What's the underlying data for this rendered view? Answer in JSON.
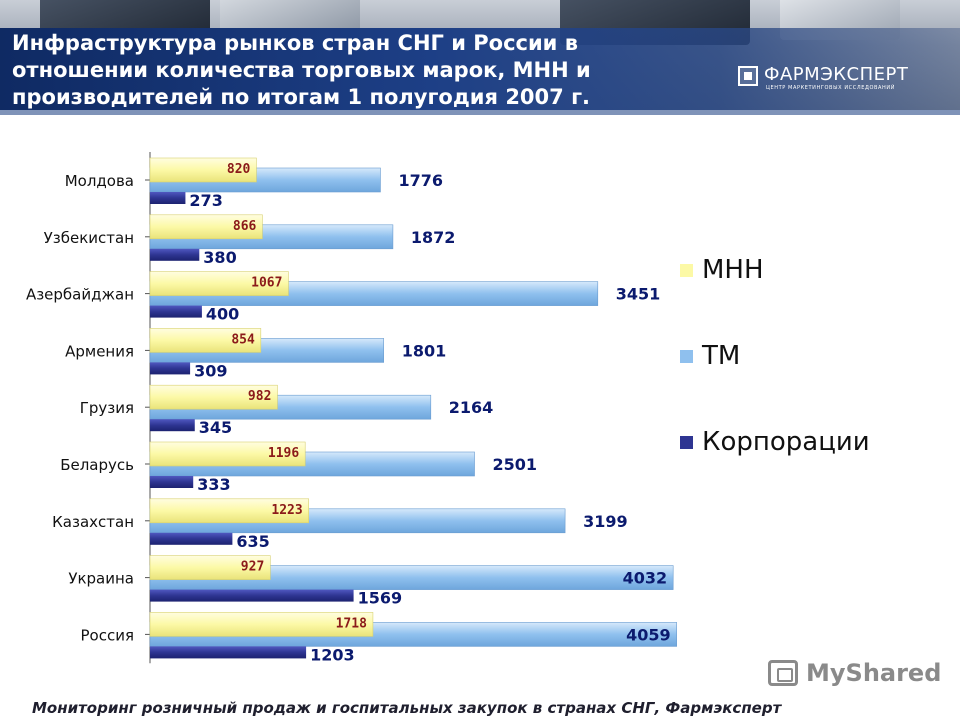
{
  "header": {
    "title_lines": [
      "Инфраструктура рынков стран СНГ и России в",
      "отношении количества торговых марок, МНН и",
      "производителей по итогам 1 полугодия 2007 г."
    ],
    "logo_name": "ФАРМЭКСПЕРТ",
    "logo_subtitle": "ЦЕНТР МАРКЕТИНГОВЫХ ИССЛЕДОВАНИЙ"
  },
  "chart_data": {
    "type": "bar",
    "orientation": "horizontal",
    "categories": [
      "Молдова",
      "Узбекистан",
      "Азербайджан",
      "Армения",
      "Грузия",
      "Беларусь",
      "Казахстан",
      "Украина",
      "Россия"
    ],
    "series": [
      {
        "name": "МНН",
        "color": "#fcf9a6",
        "label_color": "#8b1a1a",
        "values": [
          820,
          866,
          1067,
          854,
          982,
          1196,
          1223,
          927,
          1718
        ]
      },
      {
        "name": "ТМ",
        "color": "#8fc0ee",
        "label_color": "#0b1a6e",
        "values": [
          1776,
          1872,
          3451,
          1801,
          2164,
          2501,
          3199,
          4032,
          4059
        ]
      },
      {
        "name": "Корпорации",
        "color": "#2e3592",
        "label_color": "#0b1a6e",
        "values": [
          273,
          380,
          400,
          309,
          345,
          333,
          635,
          1569,
          1203
        ]
      }
    ],
    "xlim": [
      0,
      4100
    ],
    "legend_position": "right",
    "grid": false
  },
  "footer": {
    "text": "Мониторинг розничный продаж и госпитальных закупок в странах  СНГ, Фармэксперт"
  },
  "watermark": {
    "text": "MyShared"
  }
}
